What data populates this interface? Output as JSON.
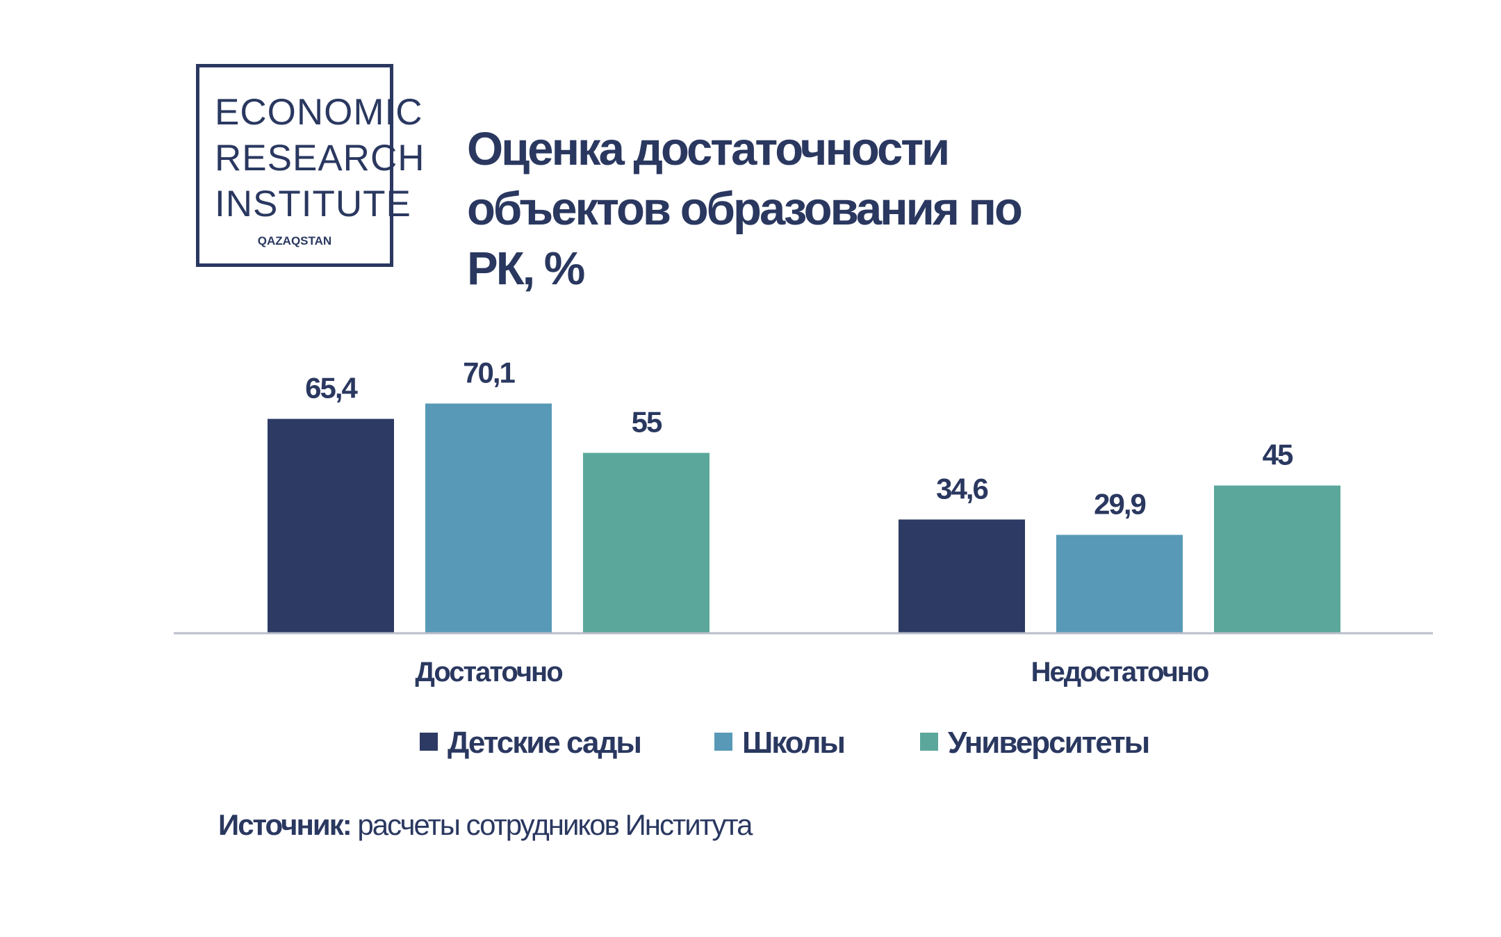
{
  "logo": {
    "lines": [
      "ECONOMIC",
      "RESEARCH",
      "INSTITUTE"
    ],
    "sub": "QAZAQSTAN"
  },
  "source": {
    "label": "Источник:",
    "text": "расчеты сотрудников Института"
  },
  "colors": {
    "text": "#2a3860",
    "series": [
      "#2c3a64",
      "#5899b7",
      "#5ba79b"
    ],
    "axis": "#b9bec9"
  },
  "chart_data": {
    "type": "bar",
    "title": "Оценка достаточности объектов образования по РК, %",
    "categories": [
      "Достаточно",
      "Недостаточно"
    ],
    "series": [
      {
        "name": "Детские сады",
        "values": [
          65.4,
          34.6
        ],
        "labels": [
          "65,4",
          "34,6"
        ]
      },
      {
        "name": "Школы",
        "values": [
          70.1,
          29.9
        ],
        "labels": [
          "70,1",
          "29,9"
        ]
      },
      {
        "name": "Университеты",
        "values": [
          55,
          45
        ],
        "labels": [
          "55",
          "45"
        ]
      }
    ],
    "ylim": [
      0,
      100
    ],
    "grid": false,
    "legend": "bottom"
  }
}
